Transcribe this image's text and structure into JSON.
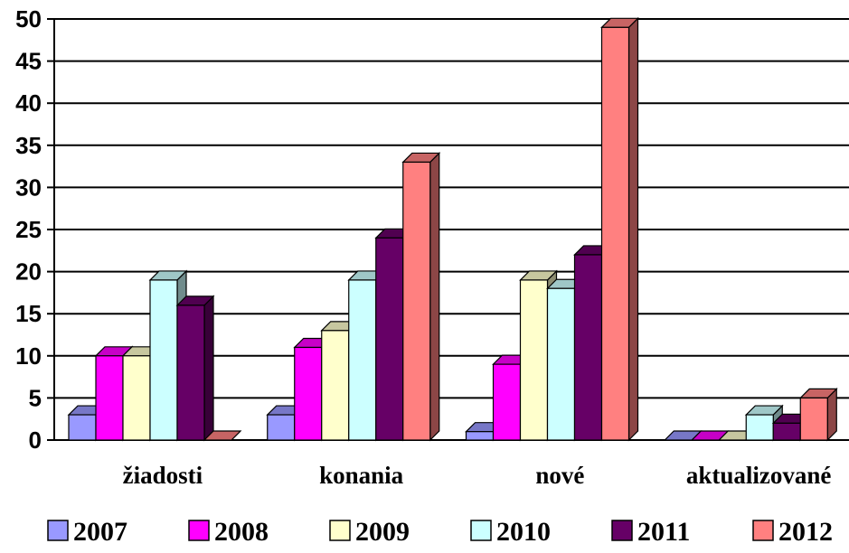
{
  "chart_data": {
    "type": "bar",
    "title": "",
    "xlabel": "",
    "ylabel": "",
    "ylim": [
      0,
      50
    ],
    "yticks": [
      0,
      5,
      10,
      15,
      20,
      25,
      30,
      35,
      40,
      45,
      50
    ],
    "grid": true,
    "legend_position": "bottom",
    "categories": [
      "žiadosti",
      "konania",
      "nové",
      "aktualizované"
    ],
    "series": [
      {
        "name": "2007",
        "color": "#9999ff",
        "values": [
          3,
          3,
          1,
          0
        ]
      },
      {
        "name": "2008",
        "color": "#ff00ff",
        "values": [
          10,
          11,
          9,
          0
        ]
      },
      {
        "name": "2009",
        "color": "#ffffcc",
        "values": [
          10,
          13,
          19,
          0
        ]
      },
      {
        "name": "2010",
        "color": "#ccffff",
        "values": [
          19,
          19,
          18,
          3
        ]
      },
      {
        "name": "2011",
        "color": "#660066",
        "values": [
          16,
          24,
          22,
          2
        ]
      },
      {
        "name": "2012",
        "color": "#ff8080",
        "values": [
          0,
          33,
          49,
          5
        ]
      }
    ]
  }
}
